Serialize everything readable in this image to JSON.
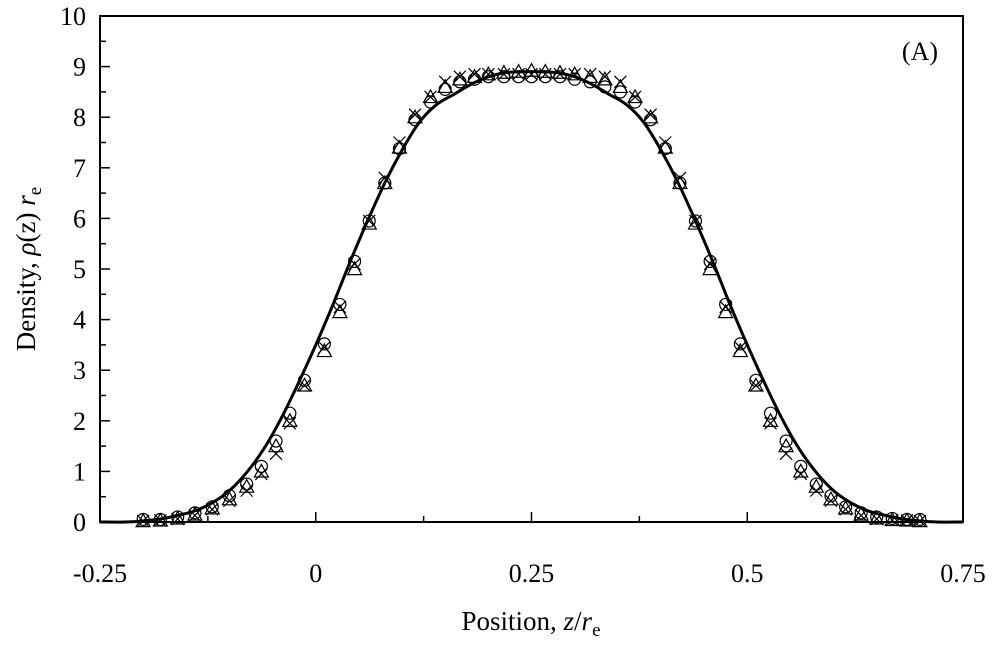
{
  "chart_data": {
    "type": "line",
    "title": "",
    "panel_label": "(A)",
    "xlabel": {
      "prefix": "Position, ",
      "var": "z",
      "sep": "/",
      "r": "r",
      "sub": "e"
    },
    "ylabel": {
      "prefix": "Density, ",
      "rho": "ρ",
      "arg": "(z) ",
      "r": "r",
      "sub": "e"
    },
    "xlim": [
      -0.25,
      0.75
    ],
    "ylim": [
      0,
      10
    ],
    "x_ticks": [
      -0.25,
      0,
      0.25,
      0.5,
      0.75
    ],
    "x_tick_labels": [
      "-0.25",
      "0",
      "0.25",
      "0.5",
      "0.75"
    ],
    "y_ticks": [
      0,
      1,
      2,
      3,
      4,
      5,
      6,
      7,
      8,
      9,
      10
    ],
    "y_tick_labels": [
      "0",
      "1",
      "2",
      "3",
      "4",
      "5",
      "6",
      "7",
      "8",
      "9",
      "10"
    ],
    "grid": false,
    "legend": "none",
    "series": [
      {
        "style": "solid-line",
        "x": [
          -0.25,
          -0.22,
          -0.2,
          -0.18,
          -0.16,
          -0.14,
          -0.12,
          -0.1,
          -0.08,
          -0.06,
          -0.04,
          -0.02,
          0.0,
          0.02,
          0.04,
          0.06,
          0.08,
          0.1,
          0.12,
          0.14,
          0.16,
          0.18,
          0.2,
          0.22,
          0.24,
          0.25,
          0.26,
          0.28,
          0.3,
          0.32,
          0.34,
          0.36,
          0.38,
          0.4,
          0.42,
          0.44,
          0.46,
          0.48,
          0.5,
          0.52,
          0.54,
          0.56,
          0.58,
          0.6,
          0.62,
          0.64,
          0.66,
          0.68,
          0.7,
          0.72,
          0.75
        ],
        "y": [
          0.0,
          0.0,
          0.02,
          0.06,
          0.13,
          0.22,
          0.38,
          0.62,
          0.98,
          1.45,
          2.05,
          2.75,
          3.5,
          4.3,
          5.15,
          5.95,
          6.7,
          7.35,
          7.9,
          8.25,
          8.45,
          8.65,
          8.8,
          8.88,
          8.9,
          8.9,
          8.9,
          8.88,
          8.8,
          8.65,
          8.45,
          8.25,
          7.9,
          7.35,
          6.7,
          5.95,
          5.15,
          4.3,
          3.5,
          2.75,
          2.05,
          1.45,
          0.98,
          0.62,
          0.38,
          0.22,
          0.13,
          0.06,
          0.02,
          0.0,
          0.0
        ]
      },
      {
        "style": "circle-marker",
        "x": [
          -0.2,
          -0.18,
          -0.16,
          -0.14,
          -0.12,
          -0.1,
          -0.08,
          -0.063,
          -0.046,
          -0.03,
          -0.013,
          0.01,
          0.028,
          0.045,
          0.062,
          0.08,
          0.097,
          0.115,
          0.133,
          0.15,
          0.167,
          0.184,
          0.2,
          0.218,
          0.235,
          0.25,
          0.266,
          0.283,
          0.3,
          0.318,
          0.335,
          0.353,
          0.37,
          0.388,
          0.405,
          0.422,
          0.44,
          0.457,
          0.475,
          0.492,
          0.51,
          0.527,
          0.545,
          0.562,
          0.58,
          0.597,
          0.614,
          0.632,
          0.65,
          0.668,
          0.685,
          0.7
        ],
        "y": [
          0.05,
          0.05,
          0.1,
          0.18,
          0.3,
          0.52,
          0.75,
          1.1,
          1.6,
          2.15,
          2.8,
          3.52,
          4.3,
          5.15,
          5.95,
          6.7,
          7.38,
          7.95,
          8.3,
          8.55,
          8.7,
          8.75,
          8.8,
          8.8,
          8.8,
          8.8,
          8.8,
          8.8,
          8.75,
          8.7,
          8.6,
          8.5,
          8.3,
          7.95,
          7.38,
          6.7,
          5.95,
          5.15,
          4.3,
          3.52,
          2.8,
          2.15,
          1.6,
          1.1,
          0.75,
          0.52,
          0.3,
          0.18,
          0.1,
          0.07,
          0.05,
          0.05
        ]
      },
      {
        "style": "triangle-marker",
        "x": [
          -0.2,
          -0.18,
          -0.16,
          -0.14,
          -0.12,
          -0.1,
          -0.08,
          -0.063,
          -0.046,
          -0.03,
          -0.013,
          0.01,
          0.028,
          0.045,
          0.062,
          0.08,
          0.097,
          0.115,
          0.133,
          0.15,
          0.167,
          0.184,
          0.2,
          0.218,
          0.235,
          0.25,
          0.266,
          0.283,
          0.3,
          0.318,
          0.335,
          0.353,
          0.37,
          0.388,
          0.405,
          0.422,
          0.44,
          0.457,
          0.475,
          0.492,
          0.51,
          0.527,
          0.545,
          0.562,
          0.58,
          0.597,
          0.614,
          0.632,
          0.65,
          0.668,
          0.685,
          0.7
        ],
        "y": [
          0.02,
          0.03,
          0.07,
          0.15,
          0.27,
          0.45,
          0.7,
          1.0,
          1.5,
          2.0,
          2.7,
          3.38,
          4.15,
          5.0,
          5.9,
          6.7,
          7.4,
          8.0,
          8.4,
          8.6,
          8.75,
          8.8,
          8.85,
          8.88,
          8.9,
          8.92,
          8.9,
          8.88,
          8.85,
          8.8,
          8.75,
          8.6,
          8.4,
          8.0,
          7.4,
          6.7,
          5.9,
          5.0,
          4.15,
          3.38,
          2.7,
          2.0,
          1.5,
          1.0,
          0.7,
          0.45,
          0.27,
          0.15,
          0.07,
          0.04,
          0.03,
          0.02
        ]
      },
      {
        "style": "cross-marker",
        "x": [
          -0.2,
          -0.18,
          -0.16,
          -0.14,
          -0.12,
          -0.1,
          -0.08,
          -0.063,
          -0.046,
          -0.03,
          -0.013,
          0.01,
          0.028,
          0.045,
          0.062,
          0.08,
          0.097,
          0.115,
          0.133,
          0.15,
          0.167,
          0.184,
          0.2,
          0.218,
          0.235,
          0.25,
          0.266,
          0.283,
          0.3,
          0.318,
          0.335,
          0.353,
          0.37,
          0.388,
          0.405,
          0.422,
          0.44,
          0.457,
          0.475,
          0.492,
          0.51,
          0.527,
          0.545,
          0.562,
          0.58,
          0.597,
          0.614,
          0.632,
          0.65,
          0.668,
          0.685,
          0.7
        ],
        "y": [
          0.02,
          0.03,
          0.06,
          0.13,
          0.25,
          0.42,
          0.62,
          0.95,
          1.35,
          1.95,
          2.7,
          3.45,
          4.25,
          5.1,
          5.95,
          6.8,
          7.5,
          8.05,
          8.4,
          8.7,
          8.8,
          8.85,
          8.85,
          8.85,
          8.85,
          8.85,
          8.85,
          8.85,
          8.85,
          8.85,
          8.8,
          8.7,
          8.4,
          8.05,
          7.5,
          6.8,
          5.95,
          5.1,
          4.25,
          3.45,
          2.7,
          1.95,
          1.35,
          0.95,
          0.62,
          0.42,
          0.25,
          0.13,
          0.06,
          0.04,
          0.03,
          0.02
        ]
      }
    ]
  }
}
